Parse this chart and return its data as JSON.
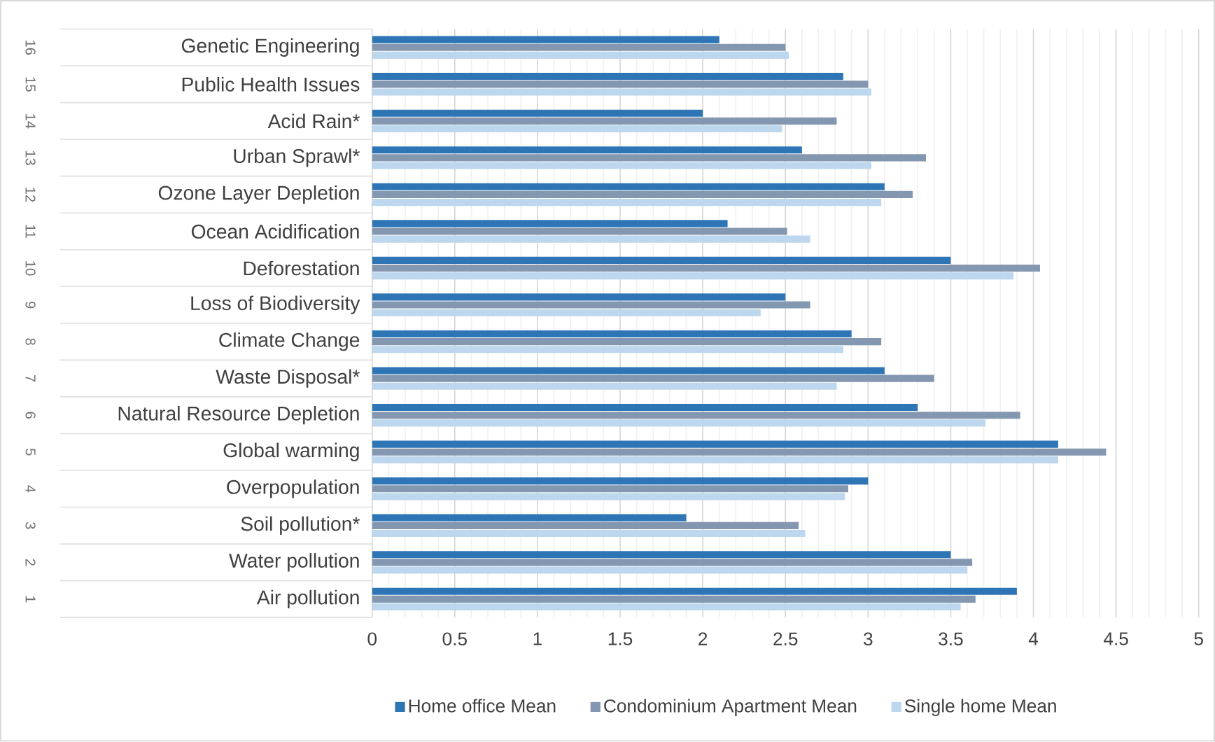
{
  "chart_data": {
    "type": "bar",
    "orientation": "horizontal",
    "categories": [
      "Genetic Engineering",
      "Public Health Issues",
      "Acid Rain*",
      "Urban Sprawl*",
      "Ozone Layer Depletion",
      "Ocean Acidification",
      "Deforestation",
      "Loss of Biodiversity",
      "Climate Change",
      "Waste Disposal*",
      "Natural Resource Depletion",
      "Global warming",
      "Overpopulation",
      "Soil pollution*",
      "Water pollution",
      "Air pollution"
    ],
    "annotations": [
      "16",
      "15",
      "14",
      "13",
      "12",
      "11",
      "10",
      "9",
      "8",
      "7",
      "6",
      "5",
      "4",
      "3",
      "2",
      "1"
    ],
    "series": [
      {
        "name": "Home office Mean",
        "color": "#2e75b6",
        "values": [
          2.1,
          2.85,
          2.0,
          2.6,
          3.1,
          2.15,
          3.5,
          2.5,
          2.9,
          3.1,
          3.3,
          4.15,
          3.0,
          1.9,
          3.5,
          3.9
        ]
      },
      {
        "name": "Condominium Apartment Mean",
        "color": "#8497b0",
        "values": [
          2.5,
          3.0,
          2.81,
          3.35,
          3.27,
          2.51,
          4.04,
          2.65,
          3.08,
          3.4,
          3.92,
          4.44,
          2.88,
          2.58,
          3.63,
          3.65
        ]
      },
      {
        "name": "Single home Mean",
        "color": "#bdd7ee",
        "values": [
          2.52,
          3.02,
          2.48,
          3.02,
          3.08,
          2.65,
          3.88,
          2.35,
          2.85,
          2.81,
          3.71,
          4.15,
          2.86,
          2.62,
          3.6,
          3.56
        ]
      }
    ],
    "xlim": [
      0,
      5
    ],
    "xticks": [
      0,
      0.5,
      1,
      1.5,
      2,
      2.5,
      3,
      3.5,
      4,
      4.5,
      5
    ],
    "grid": "x",
    "legend": "bottom"
  }
}
